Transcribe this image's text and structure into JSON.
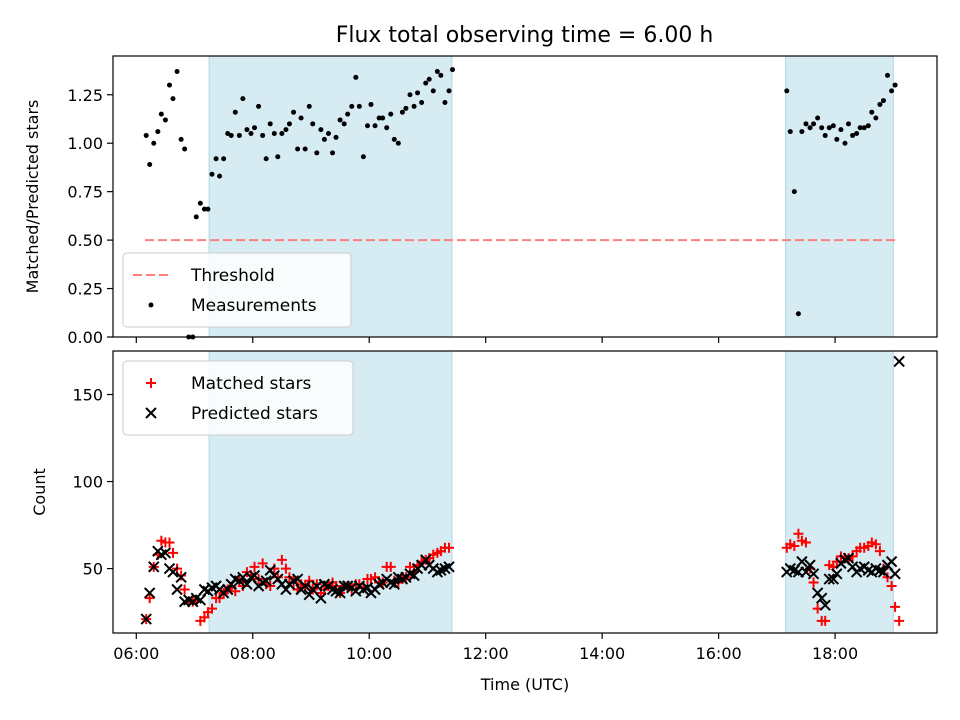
{
  "chart_data": [
    {
      "type": "scatter",
      "title": "Flux total observing time = 6.00 h",
      "xlabel": "",
      "ylabel": "Matched/Predicted stars",
      "xlim": [
        5.6,
        19.75
      ],
      "ylim": [
        0,
        1.45
      ],
      "yticks": [
        0,
        0.25,
        0.5,
        0.75,
        1.0,
        1.25
      ],
      "ytick_labels": [
        "0.00",
        "0.25",
        "0.50",
        "0.75",
        "1.00",
        "1.25"
      ],
      "xticks": [
        6,
        8,
        10,
        12,
        14,
        16,
        18
      ],
      "grid": false,
      "legend_position": "lower-left",
      "shaded_regions": [
        [
          7.25,
          11.42
        ],
        [
          17.15,
          19.0
        ]
      ],
      "shade_color": "#add8e6",
      "threshold": {
        "name": "Threshold",
        "value": 0.5,
        "x": [
          6.15,
          19.1
        ],
        "color": "#ff7f7f"
      },
      "series": [
        {
          "name": "Measurements",
          "color": "#000000",
          "x": [
            6.17,
            6.23,
            6.3,
            6.37,
            6.43,
            6.5,
            6.57,
            6.63,
            6.7,
            6.77,
            6.83,
            6.9,
            6.97,
            7.03,
            7.1,
            7.17,
            7.23,
            7.3,
            7.37,
            7.43,
            7.5,
            7.57,
            7.63,
            7.7,
            7.77,
            7.83,
            7.9,
            7.97,
            8.03,
            8.1,
            8.17,
            8.23,
            8.3,
            8.37,
            8.43,
            8.5,
            8.57,
            8.63,
            8.7,
            8.77,
            8.83,
            8.9,
            8.97,
            9.03,
            9.1,
            9.17,
            9.23,
            9.3,
            9.37,
            9.43,
            9.5,
            9.57,
            9.63,
            9.7,
            9.77,
            9.83,
            9.9,
            9.97,
            10.03,
            10.1,
            10.17,
            10.23,
            10.3,
            10.37,
            10.43,
            10.5,
            10.57,
            10.63,
            10.7,
            10.77,
            10.83,
            10.9,
            10.97,
            11.03,
            11.1,
            11.17,
            11.23,
            11.3,
            11.37,
            11.43,
            17.17,
            17.23,
            17.3,
            17.37,
            17.43,
            17.5,
            17.57,
            17.63,
            17.7,
            17.77,
            17.83,
            17.9,
            17.97,
            18.03,
            18.1,
            18.17,
            18.23,
            18.3,
            18.37,
            18.43,
            18.5,
            18.57,
            18.63,
            18.7,
            18.77,
            18.83,
            18.9,
            18.97,
            19.03
          ],
          "y": [
            1.04,
            0.89,
            1.0,
            1.06,
            1.15,
            1.12,
            1.3,
            1.23,
            1.37,
            1.02,
            0.97,
            0.0,
            0.0,
            0.62,
            0.69,
            0.66,
            0.66,
            0.84,
            0.92,
            0.83,
            0.92,
            1.05,
            1.04,
            1.16,
            1.04,
            1.23,
            1.07,
            1.05,
            1.08,
            1.19,
            1.04,
            0.92,
            1.1,
            1.05,
            0.93,
            1.05,
            1.07,
            1.1,
            1.16,
            0.97,
            1.13,
            0.97,
            1.19,
            1.1,
            0.95,
            1.07,
            1.02,
            1.05,
            0.95,
            1.03,
            1.12,
            1.1,
            1.15,
            1.19,
            1.34,
            1.19,
            0.93,
            1.09,
            1.2,
            1.09,
            1.13,
            1.13,
            1.08,
            1.15,
            1.02,
            1.0,
            1.16,
            1.18,
            1.25,
            1.19,
            1.26,
            1.21,
            1.31,
            1.33,
            1.27,
            1.37,
            1.35,
            1.21,
            1.27,
            1.38,
            1.27,
            1.06,
            0.75,
            0.12,
            1.06,
            1.1,
            1.08,
            1.1,
            1.13,
            1.08,
            1.04,
            1.08,
            1.09,
            1.02,
            1.07,
            1.0,
            1.1,
            1.04,
            1.05,
            1.08,
            1.08,
            1.09,
            1.16,
            1.13,
            1.2,
            1.22,
            1.35,
            1.27,
            1.3
          ]
        }
      ]
    },
    {
      "type": "scatter",
      "title": "",
      "xlabel": "Time (UTC)",
      "ylabel": "Count",
      "xlim": [
        5.6,
        19.75
      ],
      "ylim": [
        13,
        175
      ],
      "yticks": [
        50,
        100,
        150
      ],
      "xticks": [
        6,
        8,
        10,
        12,
        14,
        16,
        18
      ],
      "xtick_labels": [
        "06:00",
        "08:00",
        "10:00",
        "12:00",
        "14:00",
        "16:00",
        "18:00"
      ],
      "grid": false,
      "legend_position": "upper-left",
      "shaded_regions": [
        [
          7.25,
          11.42
        ],
        [
          17.15,
          19.0
        ]
      ],
      "shade_color": "#add8e6",
      "series": [
        {
          "name": "Matched stars",
          "color": "#ff0000",
          "marker": "plus",
          "x": [
            6.17,
            6.23,
            6.3,
            6.37,
            6.43,
            6.5,
            6.57,
            6.63,
            6.7,
            6.77,
            6.83,
            6.9,
            6.97,
            7.03,
            7.1,
            7.17,
            7.23,
            7.3,
            7.37,
            7.43,
            7.5,
            7.57,
            7.63,
            7.7,
            7.77,
            7.83,
            7.9,
            7.97,
            8.03,
            8.1,
            8.17,
            8.23,
            8.3,
            8.37,
            8.43,
            8.5,
            8.57,
            8.63,
            8.7,
            8.77,
            8.83,
            8.9,
            8.97,
            9.03,
            9.1,
            9.17,
            9.23,
            9.3,
            9.37,
            9.43,
            9.5,
            9.57,
            9.63,
            9.7,
            9.77,
            9.83,
            9.9,
            9.97,
            10.03,
            10.1,
            10.17,
            10.23,
            10.3,
            10.37,
            10.43,
            10.5,
            10.57,
            10.63,
            10.7,
            10.77,
            10.83,
            10.9,
            10.97,
            11.03,
            11.1,
            11.17,
            11.23,
            11.3,
            11.37,
            17.17,
            17.23,
            17.3,
            17.37,
            17.43,
            17.5,
            17.57,
            17.63,
            17.7,
            17.77,
            17.83,
            17.9,
            17.97,
            18.03,
            18.1,
            18.17,
            18.23,
            18.3,
            18.37,
            18.43,
            18.5,
            18.57,
            18.63,
            18.7,
            18.77,
            18.83,
            18.9,
            18.97,
            19.03,
            19.1
          ],
          "y": [
            21,
            33,
            51,
            58,
            66,
            65,
            65,
            59,
            50,
            46,
            38,
            31,
            31,
            32,
            20,
            22,
            25,
            27,
            33,
            33,
            36,
            38,
            39,
            37,
            43,
            40,
            48,
            46,
            51,
            44,
            53,
            41,
            40,
            50,
            45,
            55,
            50,
            45,
            42,
            38,
            41,
            40,
            43,
            38,
            41,
            36,
            38,
            40,
            42,
            40,
            36,
            40,
            40,
            38,
            41,
            41,
            39,
            44,
            44,
            45,
            42,
            42,
            51,
            51,
            43,
            42,
            44,
            45,
            51,
            48,
            52,
            54,
            55,
            56,
            58,
            59,
            60,
            62,
            62,
            62,
            64,
            63,
            70,
            66,
            65,
            50,
            42,
            27,
            20,
            20,
            52,
            51,
            54,
            57,
            56,
            56,
            57,
            60,
            62,
            62,
            63,
            65,
            64,
            60,
            50,
            45,
            40,
            28,
            20
          ]
        },
        {
          "name": "Predicted stars",
          "color": "#000000",
          "marker": "x",
          "x": [
            6.17,
            6.23,
            6.3,
            6.37,
            6.43,
            6.5,
            6.57,
            6.63,
            6.7,
            6.77,
            6.83,
            6.9,
            6.97,
            7.03,
            7.1,
            7.17,
            7.23,
            7.3,
            7.37,
            7.43,
            7.5,
            7.57,
            7.63,
            7.7,
            7.77,
            7.83,
            7.9,
            7.97,
            8.03,
            8.1,
            8.17,
            8.23,
            8.3,
            8.37,
            8.43,
            8.5,
            8.57,
            8.63,
            8.7,
            8.77,
            8.83,
            8.9,
            8.97,
            9.03,
            9.1,
            9.17,
            9.23,
            9.3,
            9.37,
            9.43,
            9.5,
            9.57,
            9.63,
            9.7,
            9.77,
            9.83,
            9.9,
            9.97,
            10.03,
            10.1,
            10.17,
            10.23,
            10.3,
            10.37,
            10.43,
            10.5,
            10.57,
            10.63,
            10.7,
            10.77,
            10.83,
            10.9,
            10.97,
            11.03,
            11.1,
            11.17,
            11.23,
            11.3,
            11.37,
            17.17,
            17.23,
            17.3,
            17.37,
            17.43,
            17.5,
            17.57,
            17.63,
            17.7,
            17.77,
            17.83,
            17.9,
            17.97,
            18.03,
            18.1,
            18.17,
            18.23,
            18.3,
            18.37,
            18.43,
            18.5,
            18.57,
            18.63,
            18.7,
            18.77,
            18.83,
            18.9,
            18.97,
            19.03,
            19.1
          ],
          "y": [
            21,
            36,
            51,
            60,
            58,
            59,
            50,
            48,
            38,
            45,
            31,
            32,
            31,
            33,
            32,
            38,
            37,
            39,
            40,
            38,
            36,
            38,
            41,
            44,
            43,
            45,
            41,
            45,
            46,
            40,
            42,
            43,
            49,
            46,
            44,
            41,
            38,
            41,
            43,
            44,
            38,
            40,
            35,
            38,
            40,
            33,
            41,
            40,
            38,
            37,
            36,
            40,
            40,
            39,
            37,
            40,
            38,
            39,
            36,
            38,
            41,
            42,
            44,
            42,
            41,
            45,
            44,
            45,
            47,
            46,
            50,
            52,
            55,
            52,
            50,
            48,
            49,
            50,
            51,
            48,
            50,
            49,
            48,
            54,
            48,
            52,
            47,
            36,
            33,
            29,
            44,
            44,
            47,
            53,
            55,
            56,
            51,
            48,
            50,
            51,
            49,
            48,
            50,
            49,
            48,
            52,
            54,
            47,
            169
          ]
        }
      ]
    }
  ]
}
